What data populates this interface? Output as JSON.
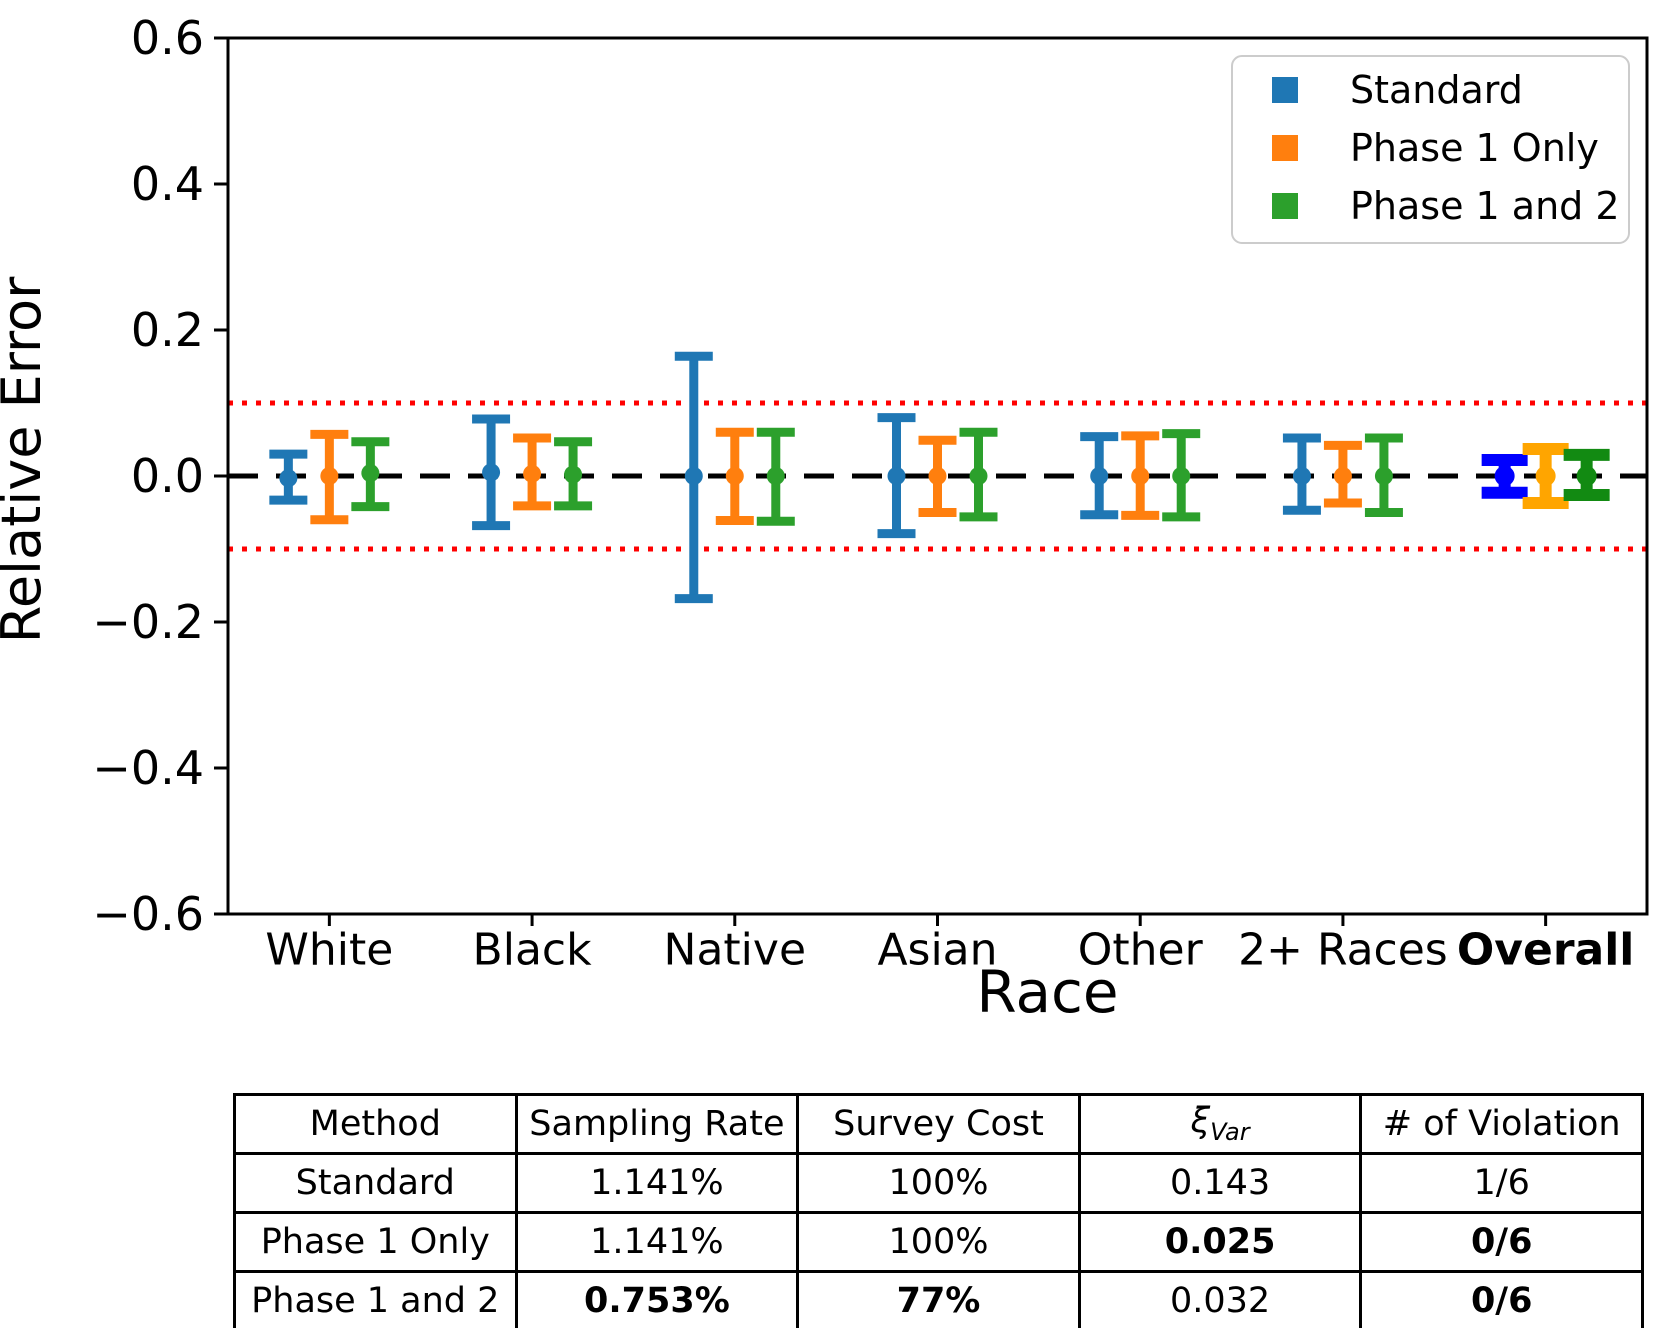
{
  "chart_data": {
    "type": "errorbar",
    "title": "",
    "xlabel": "Race",
    "ylabel": "Relative Error",
    "ylim": [
      -0.6,
      0.6
    ],
    "yticks": [
      0.6,
      0.4,
      0.2,
      0.0,
      -0.2,
      -0.4,
      -0.6
    ],
    "ytick_labels": [
      "0.6",
      "0.4",
      "0.2",
      "0.0",
      "−0.2",
      "−0.4",
      "−0.6"
    ],
    "categories": [
      "White",
      "Black",
      "Native",
      "Asian",
      "Other",
      "2+ Races",
      "Overall"
    ],
    "emphasis_category": "Overall",
    "grid": false,
    "legend_position": "upper right",
    "legend": [
      {
        "label": "Standard",
        "color": "#1f77b4"
      },
      {
        "label": "Phase 1 Only",
        "color": "#ff7f0e"
      },
      {
        "label": "Phase 1 and 2",
        "color": "#2ca02c"
      }
    ],
    "reference_lines": {
      "zero": {
        "y": 0.0,
        "style": "dashed",
        "color": "#000000"
      },
      "thresholds": {
        "ys": [
          0.1,
          -0.1
        ],
        "style": "dotted",
        "color": "#ff0000"
      }
    },
    "series": [
      {
        "name": "Standard",
        "color": "#1f77b4",
        "overall_color": "#0000ff",
        "points": [
          {
            "category": "White",
            "center": -0.003,
            "upper": 0.03,
            "lower": -0.033
          },
          {
            "category": "Black",
            "center": 0.005,
            "upper": 0.078,
            "lower": -0.068
          },
          {
            "category": "Native",
            "center": 0.0,
            "upper": 0.164,
            "lower": -0.168
          },
          {
            "category": "Asian",
            "center": 0.0,
            "upper": 0.08,
            "lower": -0.079
          },
          {
            "category": "Other",
            "center": 0.0,
            "upper": 0.054,
            "lower": -0.053
          },
          {
            "category": "2+ Races",
            "center": 0.0,
            "upper": 0.052,
            "lower": -0.047
          },
          {
            "category": "Overall",
            "center": 0.0,
            "upper": 0.022,
            "lower": -0.023
          }
        ]
      },
      {
        "name": "Phase 1 Only",
        "color": "#ff7f0e",
        "overall_color": "#ffa500",
        "points": [
          {
            "category": "White",
            "center": 0.0,
            "upper": 0.057,
            "lower": -0.06
          },
          {
            "category": "Black",
            "center": 0.003,
            "upper": 0.052,
            "lower": -0.041
          },
          {
            "category": "Native",
            "center": 0.0,
            "upper": 0.06,
            "lower": -0.061
          },
          {
            "category": "Asian",
            "center": 0.0,
            "upper": 0.049,
            "lower": -0.05
          },
          {
            "category": "Other",
            "center": 0.0,
            "upper": 0.055,
            "lower": -0.054
          },
          {
            "category": "2+ Races",
            "center": 0.0,
            "upper": 0.042,
            "lower": -0.037
          },
          {
            "category": "Overall",
            "center": 0.0,
            "upper": 0.037,
            "lower": -0.037
          }
        ]
      },
      {
        "name": "Phase 1 and 2",
        "color": "#2ca02c",
        "overall_color": "#128a12",
        "points": [
          {
            "category": "White",
            "center": 0.004,
            "upper": 0.047,
            "lower": -0.042
          },
          {
            "category": "Black",
            "center": 0.002,
            "upper": 0.047,
            "lower": -0.041
          },
          {
            "category": "Native",
            "center": 0.0,
            "upper": 0.06,
            "lower": -0.062
          },
          {
            "category": "Asian",
            "center": 0.0,
            "upper": 0.06,
            "lower": -0.056
          },
          {
            "category": "Other",
            "center": 0.0,
            "upper": 0.058,
            "lower": -0.056
          },
          {
            "category": "2+ Races",
            "center": 0.0,
            "upper": 0.052,
            "lower": -0.05
          },
          {
            "category": "Overall",
            "center": 0.0,
            "upper": 0.029,
            "lower": -0.026
          }
        ]
      }
    ]
  },
  "table": {
    "header": {
      "method": "Method",
      "sampling_rate": "Sampling Rate",
      "survey_cost": "Survey Cost",
      "xi_symbol": "ξ",
      "xi_subscript": "Var",
      "violations": "# of Violation"
    },
    "rows": [
      {
        "method": "Standard",
        "sampling_rate": "1.141%",
        "survey_cost": "100%",
        "xi_var": "0.143",
        "violations": "1/6"
      },
      {
        "method": "Phase 1 Only",
        "sampling_rate": "1.141%",
        "survey_cost": "100%",
        "xi_var": "0.025",
        "violations": "0/6"
      },
      {
        "method": "Phase 1 and 2",
        "sampling_rate": "0.753%",
        "survey_cost": "77%",
        "xi_var": "0.032",
        "violations": "0/6"
      }
    ]
  }
}
